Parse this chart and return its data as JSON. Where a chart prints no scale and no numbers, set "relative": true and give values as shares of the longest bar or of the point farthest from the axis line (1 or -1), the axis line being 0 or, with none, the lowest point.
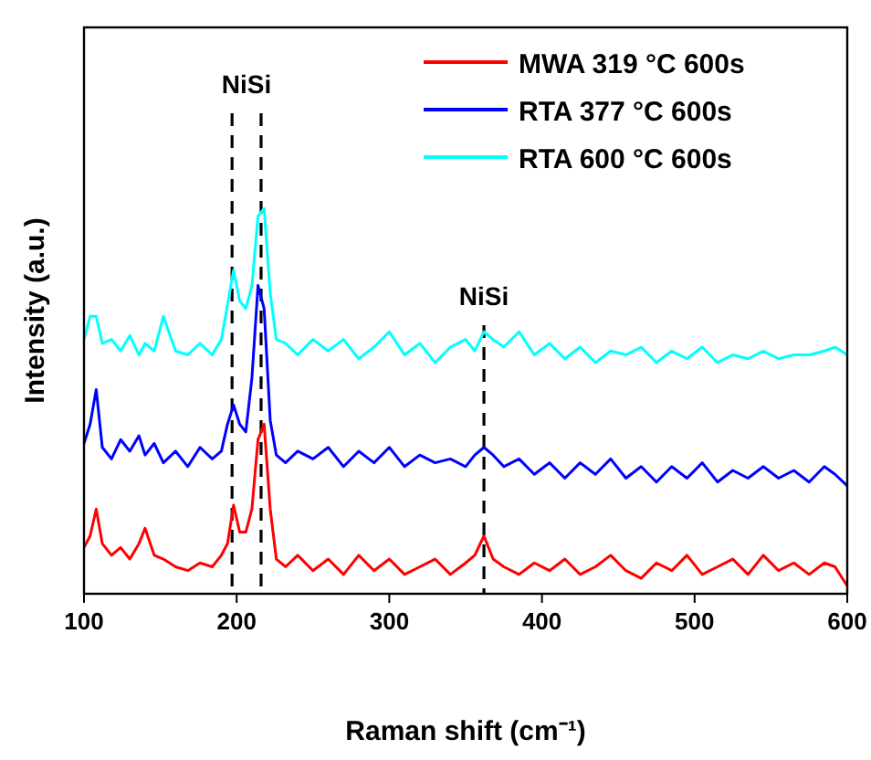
{
  "chart_data": {
    "type": "line",
    "xlabel": "Raman shift (cm⁻¹)",
    "ylabel": "Intensity (a.u.)",
    "relative": true,
    "legend": "top right",
    "line_style": "solid",
    "marker": "none",
    "grid": false,
    "xlim": [
      100,
      600
    ],
    "xticks": [
      100,
      200,
      300,
      400,
      500,
      600
    ],
    "x": [
      100,
      104,
      108,
      112,
      118,
      124,
      130,
      136,
      140,
      146,
      152,
      160,
      168,
      176,
      184,
      190,
      194,
      198,
      202,
      206,
      210,
      214,
      218,
      222,
      226,
      232,
      240,
      250,
      260,
      270,
      280,
      290,
      300,
      310,
      320,
      330,
      340,
      350,
      356,
      362,
      368,
      375,
      385,
      395,
      405,
      415,
      425,
      435,
      445,
      455,
      465,
      475,
      485,
      495,
      505,
      515,
      525,
      535,
      545,
      555,
      565,
      575,
      585,
      592,
      600
    ],
    "series": [
      {
        "name": "MWA 319 °C 600s",
        "color": "#ff0000",
        "values": [
          0.12,
          0.15,
          0.22,
          0.13,
          0.1,
          0.12,
          0.09,
          0.13,
          0.17,
          0.1,
          0.09,
          0.07,
          0.06,
          0.08,
          0.07,
          0.1,
          0.13,
          0.23,
          0.16,
          0.16,
          0.22,
          0.4,
          0.44,
          0.22,
          0.09,
          0.07,
          0.1,
          0.06,
          0.09,
          0.05,
          0.1,
          0.06,
          0.09,
          0.05,
          0.07,
          0.09,
          0.05,
          0.08,
          0.1,
          0.15,
          0.09,
          0.07,
          0.05,
          0.08,
          0.06,
          0.09,
          0.05,
          0.07,
          0.1,
          0.06,
          0.04,
          0.08,
          0.06,
          0.1,
          0.05,
          0.07,
          0.09,
          0.05,
          0.1,
          0.06,
          0.08,
          0.05,
          0.08,
          0.07,
          0.02
        ]
      },
      {
        "name": "RTA 377 °C 600s",
        "color": "#0000ff",
        "values": [
          0.39,
          0.44,
          0.53,
          0.38,
          0.35,
          0.4,
          0.37,
          0.41,
          0.36,
          0.39,
          0.34,
          0.37,
          0.33,
          0.38,
          0.35,
          0.37,
          0.44,
          0.49,
          0.44,
          0.42,
          0.56,
          0.8,
          0.74,
          0.45,
          0.36,
          0.34,
          0.37,
          0.35,
          0.38,
          0.33,
          0.37,
          0.34,
          0.38,
          0.33,
          0.36,
          0.34,
          0.35,
          0.33,
          0.36,
          0.38,
          0.36,
          0.33,
          0.35,
          0.31,
          0.34,
          0.3,
          0.34,
          0.31,
          0.35,
          0.3,
          0.33,
          0.29,
          0.33,
          0.3,
          0.34,
          0.29,
          0.32,
          0.3,
          0.33,
          0.3,
          0.32,
          0.29,
          0.33,
          0.31,
          0.28
        ]
      },
      {
        "name": "RTA 600 °C 600s",
        "color": "#00ffff",
        "values": [
          0.66,
          0.72,
          0.72,
          0.65,
          0.66,
          0.63,
          0.67,
          0.62,
          0.65,
          0.63,
          0.72,
          0.63,
          0.62,
          0.65,
          0.62,
          0.66,
          0.75,
          0.84,
          0.76,
          0.74,
          0.8,
          0.98,
          1.0,
          0.78,
          0.66,
          0.65,
          0.62,
          0.66,
          0.63,
          0.66,
          0.61,
          0.64,
          0.68,
          0.62,
          0.65,
          0.6,
          0.64,
          0.66,
          0.63,
          0.68,
          0.66,
          0.64,
          0.68,
          0.62,
          0.65,
          0.61,
          0.64,
          0.6,
          0.63,
          0.62,
          0.64,
          0.6,
          0.63,
          0.61,
          0.64,
          0.6,
          0.62,
          0.61,
          0.63,
          0.61,
          0.62,
          0.62,
          0.63,
          0.64,
          0.62
        ]
      }
    ],
    "ref_lines": [
      {
        "axis": "x",
        "value": 197,
        "line_style": "dashed",
        "color": "#000000"
      },
      {
        "axis": "x",
        "value": 216,
        "line_style": "dashed",
        "color": "#000000"
      },
      {
        "axis": "x",
        "value": 362,
        "line_style": "dashed",
        "color": "#000000"
      }
    ],
    "annotations": [
      "NiSi",
      "NiSi"
    ]
  }
}
